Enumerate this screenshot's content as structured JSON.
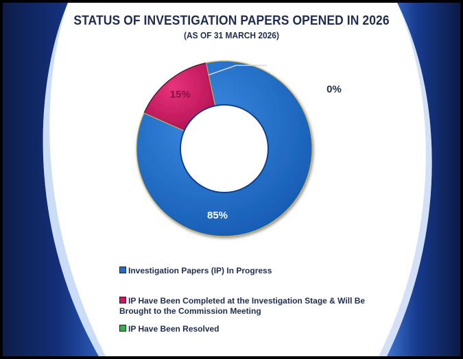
{
  "chart_data": {
    "type": "pie",
    "title": "STATUS OF INVESTIGATION PAPERS OPENED IN 2026",
    "subtitle": "(AS OF 31 MARCH 2026)",
    "categories": [
      "Investigation Papers (IP) In Progress",
      "IP Have Been Completed at the Investigation Stage & Will Be Brought to the Commission Meeting",
      "IP Have Been Resolved"
    ],
    "values": [
      85,
      15,
      0
    ],
    "data_labels": [
      "85%",
      "15%",
      "0%"
    ],
    "colors": [
      "#1f6fc7",
      "#d11462",
      "#2db34a"
    ],
    "legend_placement": "bottom"
  }
}
